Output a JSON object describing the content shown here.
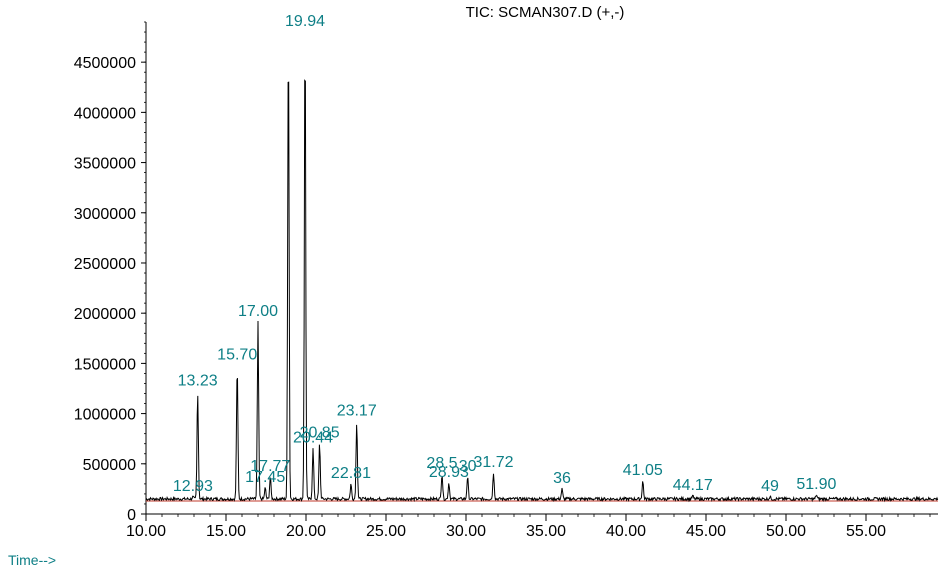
{
  "chart_data": {
    "type": "line",
    "title": "TIC: SCMAN307.D (+,-)",
    "xlabel": "Time-->",
    "ylabel": "",
    "xlim": [
      10.0,
      59.5
    ],
    "ylim": [
      0,
      4900000
    ],
    "x_ticks": [
      10.0,
      15.0,
      20.0,
      25.0,
      30.0,
      35.0,
      40.0,
      45.0,
      50.0,
      55.0
    ],
    "x_tick_labels": [
      "10.00",
      "15.00",
      "20.00",
      "25.00",
      "30.00",
      "35.00",
      "40.00",
      "45.00",
      "50.00",
      "55.00"
    ],
    "y_ticks": [
      0,
      500000,
      1000000,
      1500000,
      2000000,
      2500000,
      3000000,
      3500000,
      4000000,
      4500000
    ],
    "y_tick_labels": [
      "0",
      "500000",
      "1000000",
      "1500000",
      "2000000",
      "2500000",
      "3000000",
      "3500000",
      "4000000",
      "4500000"
    ],
    "baseline": 150000,
    "baseline_color": "#c0392b",
    "line_color": "#000000",
    "label_color": "#0e7f86",
    "series": [
      {
        "peaks": [
          {
            "x": 12.93,
            "y": 170000,
            "label": "12.93"
          },
          {
            "x": 13.23,
            "y": 1220000,
            "label": "13.23"
          },
          {
            "x": 15.7,
            "y": 1480000,
            "label": "15.70"
          },
          {
            "x": 17.0,
            "y": 1910000,
            "label": "17.00"
          },
          {
            "x": 17.45,
            "y": 260000,
            "label": "17.45"
          },
          {
            "x": 17.77,
            "y": 370000,
            "label": "17.77"
          },
          {
            "x": 18.9,
            "y": 4800000,
            "label": ""
          },
          {
            "x": 19.94,
            "y": 4800000,
            "label": "19.94"
          },
          {
            "x": 20.44,
            "y": 650000,
            "label": "20.44"
          },
          {
            "x": 20.85,
            "y": 700000,
            "label": "20.85"
          },
          {
            "x": 22.81,
            "y": 300000,
            "label": "22.81"
          },
          {
            "x": 23.17,
            "y": 920000,
            "label": "23.17"
          },
          {
            "x": 28.5,
            "y": 400000,
            "label": "28.5"
          },
          {
            "x": 28.93,
            "y": 310000,
            "label": "28.93"
          },
          {
            "x": 30.1,
            "y": 370000,
            "label": "30"
          },
          {
            "x": 31.72,
            "y": 410000,
            "label": "31.72"
          },
          {
            "x": 36.0,
            "y": 250000,
            "label": "36"
          },
          {
            "x": 41.05,
            "y": 330000,
            "label": "41.05"
          },
          {
            "x": 44.17,
            "y": 180000,
            "label": "44.17"
          },
          {
            "x": 49.0,
            "y": 170000,
            "label": "49"
          },
          {
            "x": 51.9,
            "y": 190000,
            "label": "51.90"
          }
        ]
      }
    ]
  }
}
